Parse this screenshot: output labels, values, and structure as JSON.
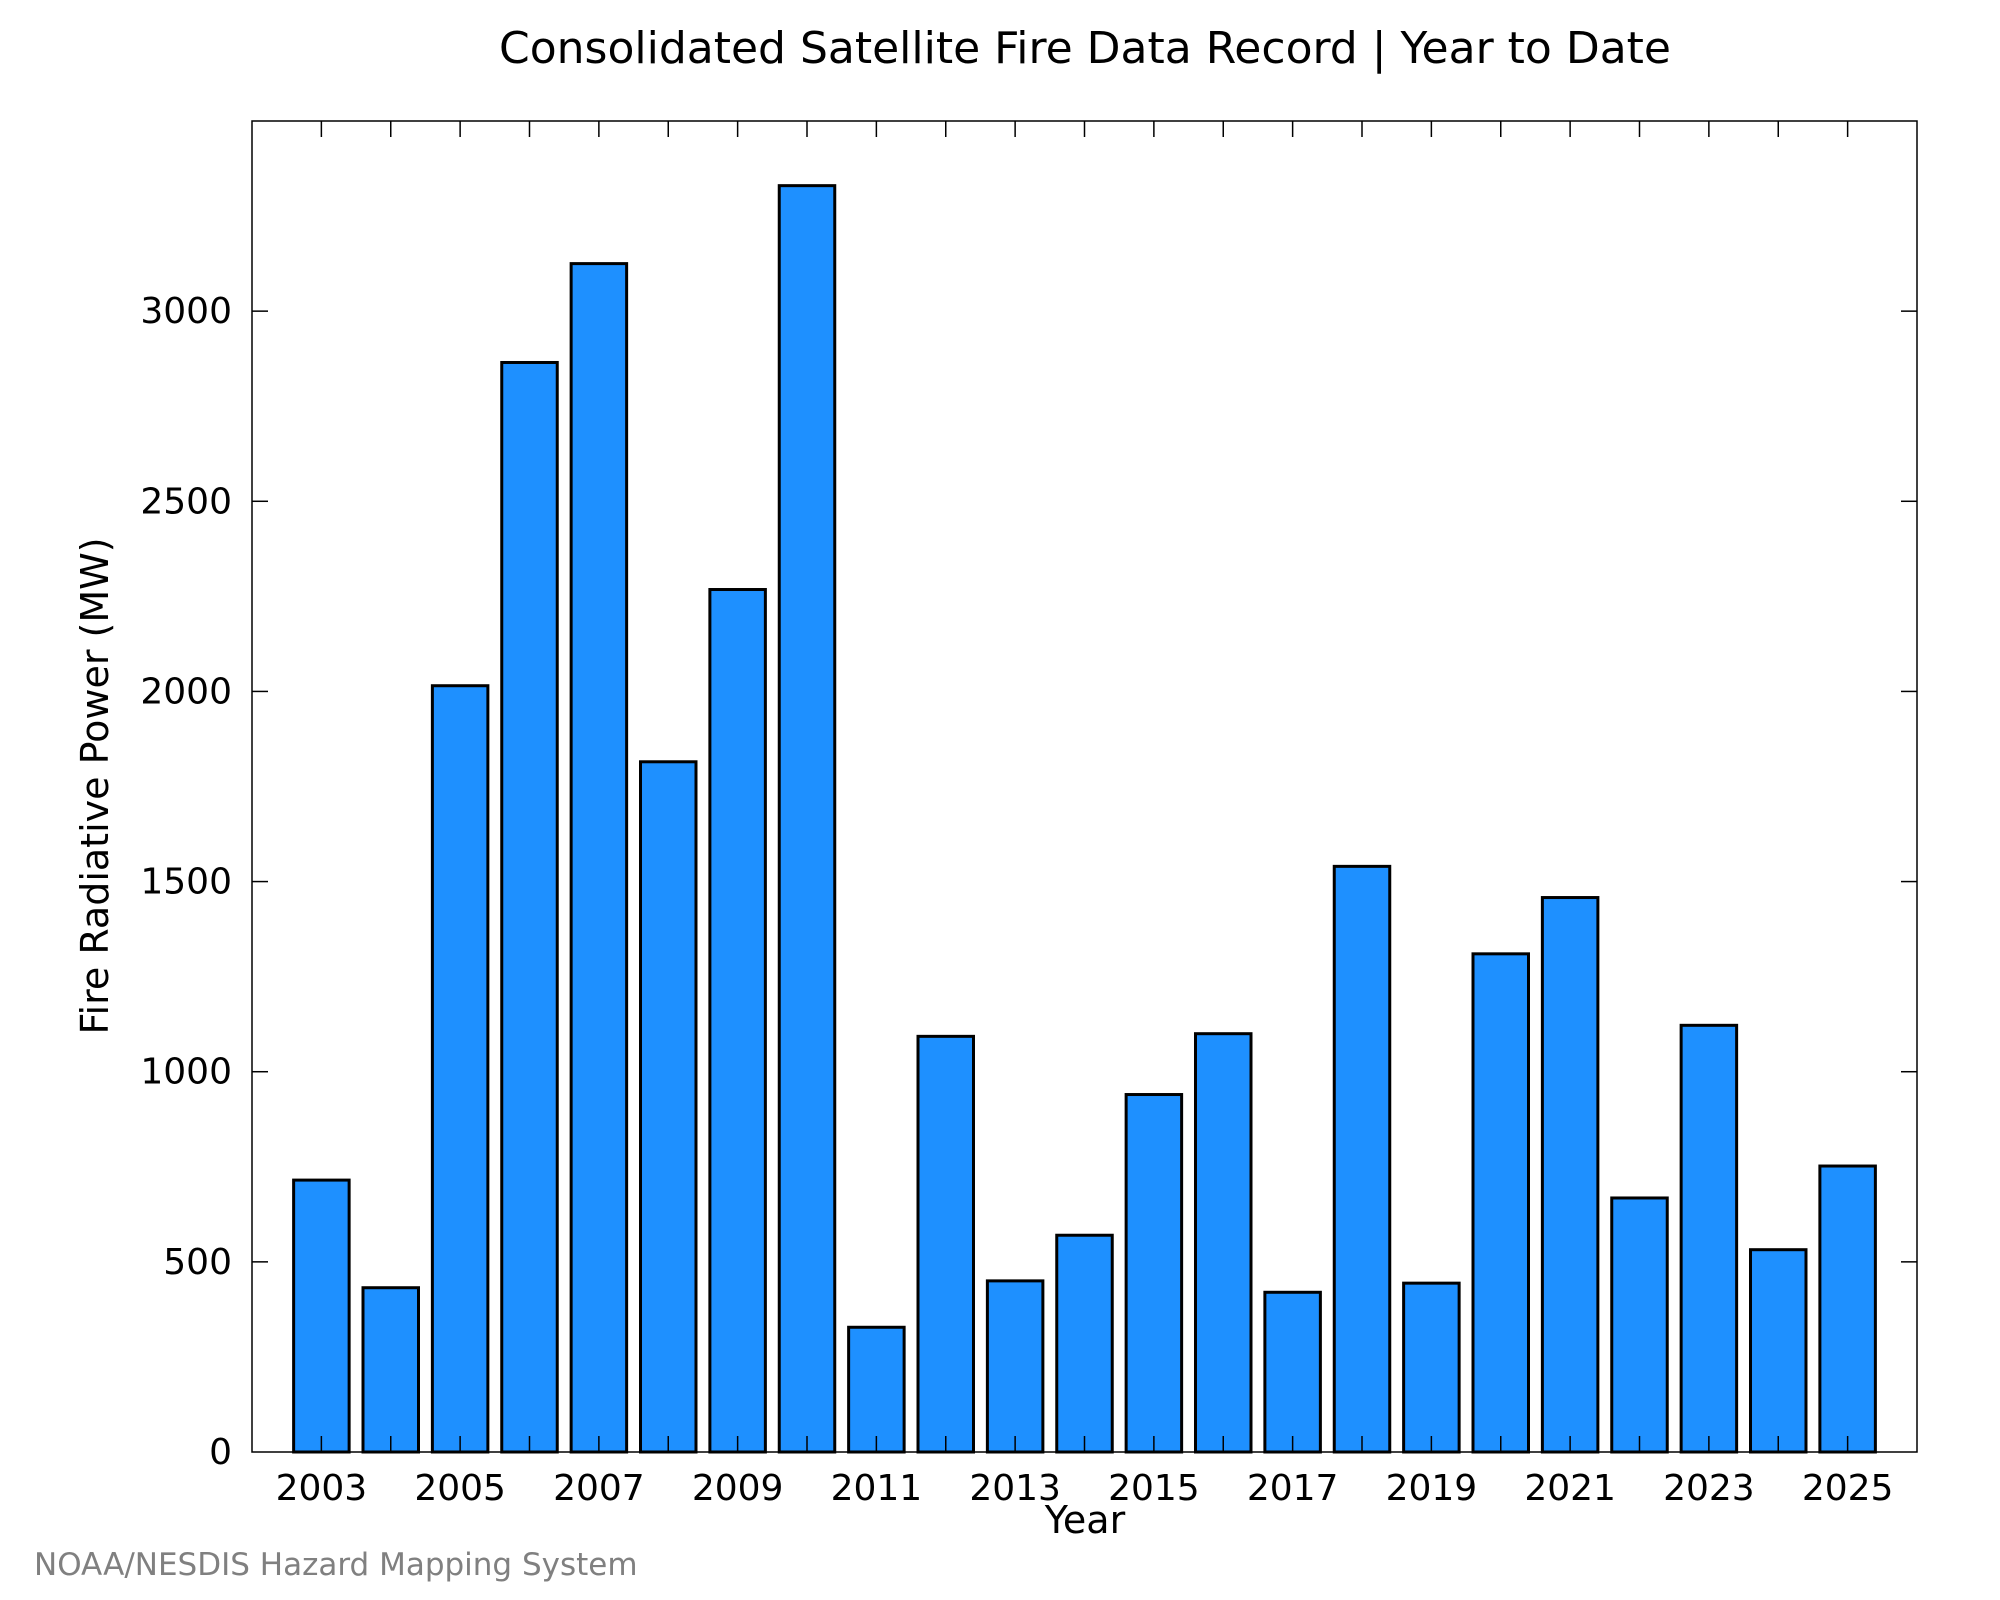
{
  "chart_data": {
    "type": "bar",
    "title": "Consolidated Satellite Fire Data Record | Year to Date",
    "xlabel": "Year",
    "ylabel": "Fire Radiative Power (MW)",
    "source": "NOAA/NESDIS Hazard Mapping System",
    "categories": [
      "2003",
      "2004",
      "2005",
      "2006",
      "2007",
      "2008",
      "2009",
      "2010",
      "2011",
      "2012",
      "2013",
      "2014",
      "2015",
      "2016",
      "2017",
      "2018",
      "2019",
      "2020",
      "2021",
      "2022",
      "2023",
      "2024",
      "2025"
    ],
    "values": [
      715,
      432,
      2015,
      2865,
      3125,
      1815,
      2268,
      3330,
      328,
      1093,
      450,
      570,
      940,
      1100,
      420,
      1540,
      444,
      1310,
      1458,
      668,
      1122,
      532,
      752
    ],
    "x_tick_labels": [
      "2003",
      "2005",
      "2007",
      "2009",
      "2011",
      "2013",
      "2015",
      "2017",
      "2019",
      "2021",
      "2023",
      "2025"
    ],
    "y_ticks": [
      0,
      500,
      1000,
      1500,
      2000,
      2500,
      3000
    ],
    "ylim": [
      0,
      3500
    ],
    "bar_color": "#1e90ff",
    "bar_edge_color": "#000000",
    "grid": false,
    "legend": "none"
  }
}
